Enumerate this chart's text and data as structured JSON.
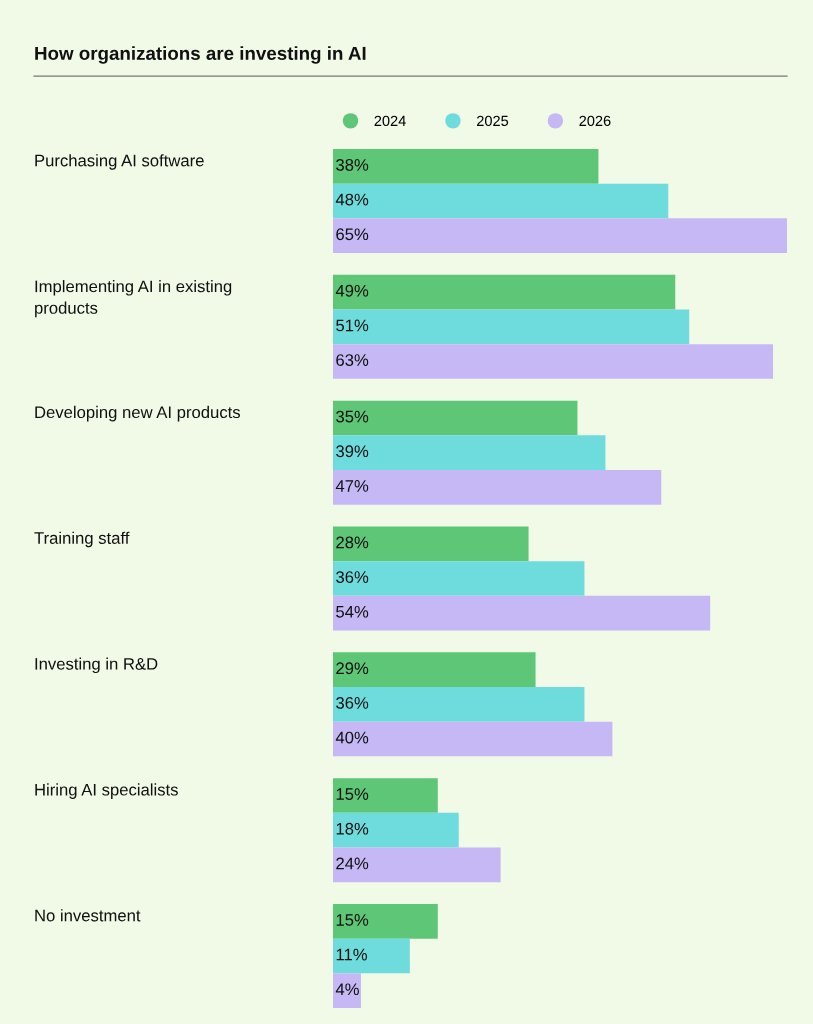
{
  "chart_data": {
    "type": "bar",
    "orientation": "horizontal",
    "title": "How organizations are investing in AI",
    "categories": [
      "Purchasing AI software",
      "Implementing AI in existing products",
      "Developing new AI products",
      "Training staff",
      "Investing in R&D",
      "Hiring AI specialists",
      "No investment"
    ],
    "series": [
      {
        "name": "2024",
        "color": "#5ec677",
        "values": [
          38,
          49,
          35,
          28,
          29,
          15,
          15
        ],
        "value_labels": [
          "38%",
          "49%",
          "35%",
          "28%",
          "29%",
          "15%",
          "15%"
        ]
      },
      {
        "name": "2025",
        "color": "#6edcdc",
        "values": [
          48,
          51,
          39,
          36,
          36,
          18,
          11
        ],
        "value_labels": [
          "48%",
          "51%",
          "39%",
          "36%",
          "36%",
          "18%",
          "11%"
        ]
      },
      {
        "name": "2026",
        "color": "#c5b8f5",
        "values": [
          65,
          63,
          47,
          54,
          40,
          24,
          4
        ],
        "value_labels": [
          "65%",
          "63%",
          "47%",
          "54%",
          "40%",
          "24%",
          "4%"
        ]
      }
    ],
    "legend": "top"
  }
}
